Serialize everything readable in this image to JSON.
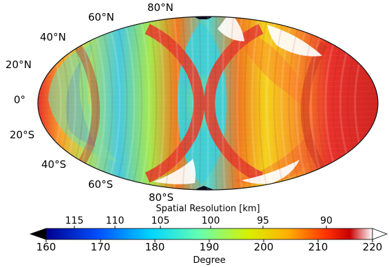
{
  "latitude_labels": {
    "n80": "80°N",
    "n60": "60°N",
    "n40": "40°N",
    "n20": "20°N",
    "eq": "0°",
    "s20": "20°S",
    "s40": "40°S",
    "s60": "60°S",
    "s80": "80°S"
  },
  "colorbar": {
    "top_title": "Spatial Resolution [km]",
    "top_ticks": [
      "115",
      "110",
      "105",
      "100",
      "95",
      "90"
    ],
    "bottom_ticks": [
      "160",
      "170",
      "180",
      "190",
      "200",
      "210",
      "220"
    ],
    "bottom_title": "Degree",
    "colormap": [
      "#00008f",
      "#0050ff",
      "#00d4ff",
      "#66ffb0",
      "#d8f000",
      "#ffb000",
      "#ff3000",
      "#c80000",
      "#ffffff"
    ]
  },
  "map_colors": {
    "center_band": "#4fd6d0",
    "green": "#a6e84c",
    "yellow": "#f4d21c",
    "orange": "#f79b25",
    "red": "#e8302a",
    "dark_red": "#b81a14",
    "white": "#ffffff",
    "polar_black": "#0b0b23"
  }
}
